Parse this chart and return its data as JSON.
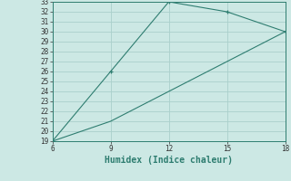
{
  "line1_x": [
    6,
    9,
    12,
    15,
    18
  ],
  "line1_y": [
    19,
    26,
    33,
    32,
    30
  ],
  "line2_x": [
    6,
    9,
    12,
    15,
    18
  ],
  "line2_y": [
    19,
    21,
    24,
    27,
    30
  ],
  "line_color": "#2e7d70",
  "bg_color": "#cce8e4",
  "grid_color": "#aad0cb",
  "xlabel": "Humidex (Indice chaleur)",
  "xlim": [
    6,
    18
  ],
  "ylim": [
    19,
    33
  ],
  "xticks": [
    6,
    9,
    12,
    15,
    18
  ],
  "yticks": [
    19,
    20,
    21,
    22,
    23,
    24,
    25,
    26,
    27,
    28,
    29,
    30,
    31,
    32,
    33
  ],
  "xlabel_fontsize": 7,
  "tick_fontsize": 5.5
}
